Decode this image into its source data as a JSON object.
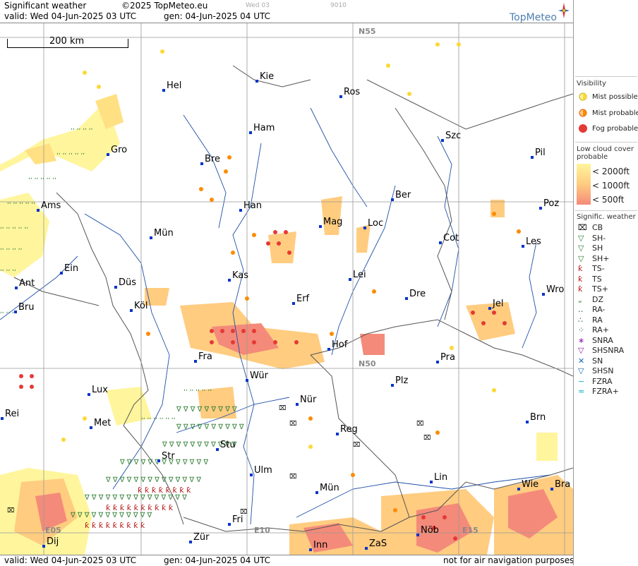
{
  "header": {
    "title": "Significant weather",
    "copyright": "©2025 TopMeteo.eu",
    "valid": "valid:  Wed  04-Jun-2025  03 UTC",
    "gen": "gen: 04-Jun-2025 04 UTC",
    "faint_day": "Wed 03",
    "faint_code": "9010",
    "brand": "TopMeteo"
  },
  "footer": {
    "valid": "valid:  Wed  04-Jun-2025  03 UTC",
    "gen": "gen: 04-Jun-2025 04 UTC",
    "disclaimer": "not for air navigation purposes"
  },
  "map": {
    "scale_label": "200 km",
    "grid_labels": [
      "N55",
      "N50",
      "E05",
      "E10",
      "E15"
    ],
    "cities": [
      "Hel",
      "Kie",
      "Ros",
      "Szc",
      "Ham",
      "Gro",
      "Bre",
      "Pil",
      "Ber",
      "Poz",
      "Ams",
      "Han",
      "Mag",
      "Loc",
      "Mün",
      "Cot",
      "Les",
      "Ein",
      "Kas",
      "Lei",
      "Ant",
      "Düs",
      "Dre",
      "Wro",
      "Bru",
      "Köl",
      "Erf",
      "Jel",
      "Hof",
      "Fra",
      "Pra",
      "Wür",
      "Plz",
      "Lux",
      "Nür",
      "Rei",
      "Met",
      "Brn",
      "Reg",
      "Stu",
      "Str",
      "Ulm",
      "Lin",
      "Wie",
      "Bra",
      "Mün",
      "Fri",
      "Dij",
      "Zür",
      "Inn",
      "ZaS",
      "Nöb"
    ]
  },
  "legend": {
    "visibility_title": "Visibility",
    "mist_possible": "Mist possible",
    "mist_probable": "Mist probable",
    "fog_probable": "Fog probable",
    "cloud_title": "Low cloud cover probable",
    "cloud_2000": "< 2000ft",
    "cloud_1000": "< 1000ft",
    "cloud_500": "<   500ft",
    "sig_title": "Signific. weather",
    "symbols": [
      "CB",
      "SH-",
      "SH",
      "SH+",
      "TS-",
      "TS",
      "TS+",
      "DZ",
      "RA-",
      "RA",
      "RA+",
      "SNRA",
      "SHSNRA",
      "SN",
      "SHSN",
      "FZRA",
      "FZRA+"
    ],
    "colors": {
      "low": "#fff59d",
      "mid": "#ffcc80",
      "high": "#f48a7a",
      "fog": "#e53935",
      "mist": "#fb8c00"
    }
  }
}
